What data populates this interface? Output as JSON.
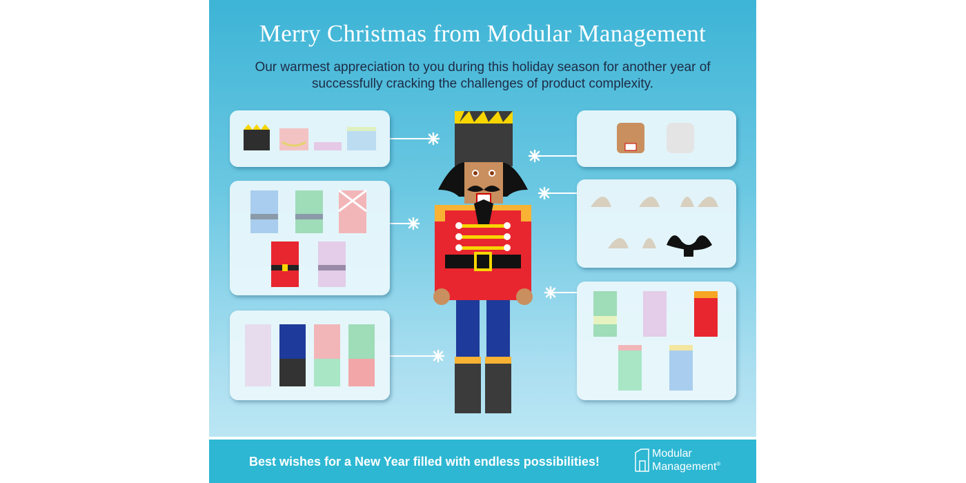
{
  "title": "Merry Christmas from Modular Management",
  "subtitle_line1": "Our warmest appreciation to you during this holiday season for another year of",
  "subtitle_line2": "successfully cracking the challenges of product complexity.",
  "footer": {
    "message": "Best wishes for a New Year filled with endless possibilities!",
    "logo_line1": "Modular",
    "logo_line2": "Management",
    "logo_mark": "®"
  },
  "colors": {
    "background": "#4dbcdc",
    "footer": "#2db7d3",
    "title": "#ffffff",
    "subtitle": "#1d2b45",
    "coat": "#e8262f",
    "trousers": "#1e3a9a",
    "hat": "#3b3b3b"
  }
}
